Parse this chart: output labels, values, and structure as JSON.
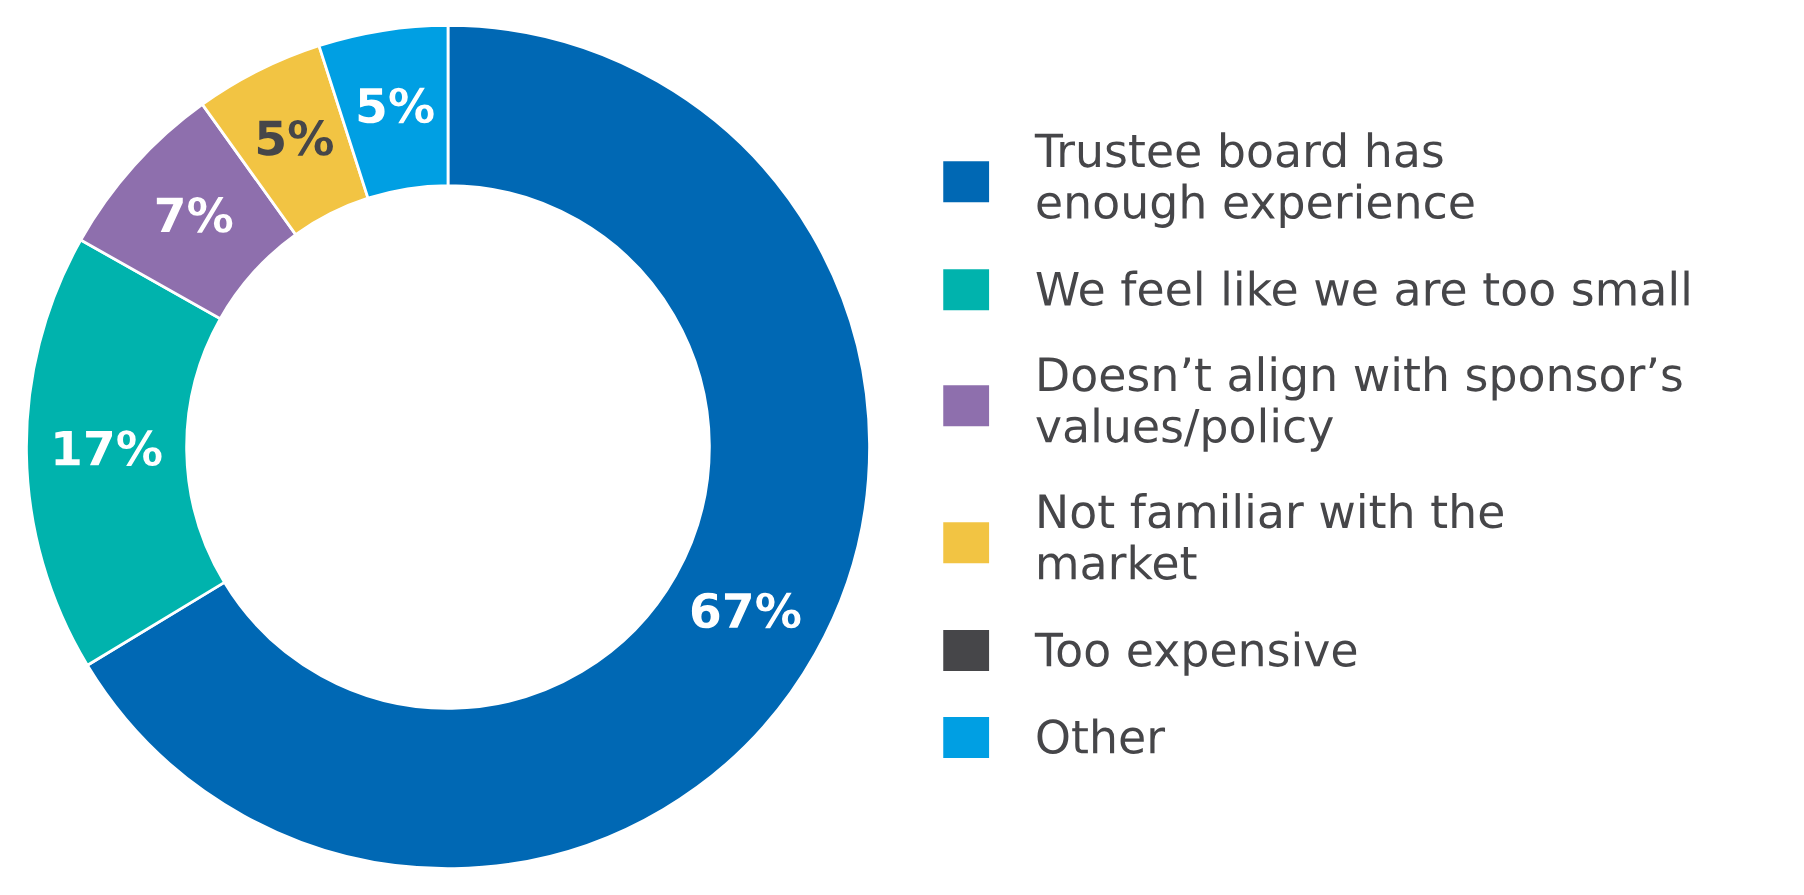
{
  "chart_data": {
    "type": "donut",
    "categories": [
      "Trustee board has\nenough experience",
      "We feel like we are too small",
      "Doesn’t align with sponsor’s\nvalues/policy",
      "Not familiar with the\nmarket",
      "Too expensive",
      "Other"
    ],
    "values": [
      67,
      17,
      7,
      5,
      0,
      5
    ],
    "value_labels": [
      "67%",
      "17%",
      "7%",
      "5%",
      null,
      "5%"
    ],
    "colors": [
      "#0068b4",
      "#00b3ad",
      "#8e6fad",
      "#f2c443",
      "#464649",
      "#009fe3"
    ],
    "legend": "right"
  }
}
